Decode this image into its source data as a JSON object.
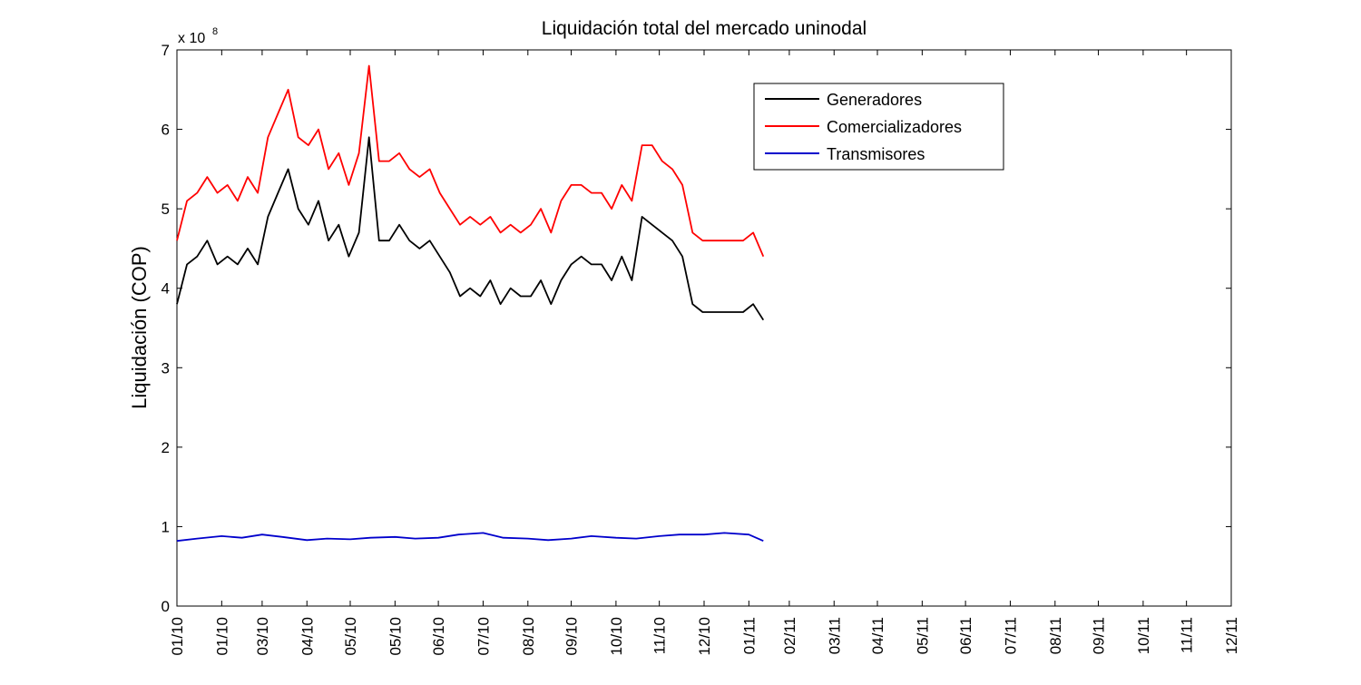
{
  "chart_data": {
    "type": "line",
    "title": "Liquidación total del mercado uninodal",
    "xlabel": "",
    "ylabel": "Liquidación (COP)",
    "y_exponent_label": "x 10",
    "y_exponent_power": "8",
    "ylim": [
      0,
      7
    ],
    "xlim": [
      "2010-01-01",
      "2011-12-01"
    ],
    "yticks": [
      "0",
      "1",
      "2",
      "3",
      "4",
      "5",
      "6",
      "7"
    ],
    "xticks": [
      {
        "date": "2010-01-01",
        "label": "01/10"
      },
      {
        "date": "2010-02-01",
        "label": "01/10"
      },
      {
        "date": "2010-03-01",
        "label": "03/10"
      },
      {
        "date": "2010-04-01",
        "label": "04/10"
      },
      {
        "date": "2010-05-01",
        "label": "05/10"
      },
      {
        "date": "2010-06-01",
        "label": "05/10"
      },
      {
        "date": "2010-07-01",
        "label": "06/10"
      },
      {
        "date": "2010-08-01",
        "label": "07/10"
      },
      {
        "date": "2010-09-01",
        "label": "08/10"
      },
      {
        "date": "2010-10-01",
        "label": "09/10"
      },
      {
        "date": "2010-11-01",
        "label": "10/10"
      },
      {
        "date": "2010-12-01",
        "label": "11/10"
      },
      {
        "date": "2011-01-01",
        "label": "12/10"
      },
      {
        "date": "2011-02-01",
        "label": "01/11"
      },
      {
        "date": "2011-03-01",
        "label": "02/11"
      },
      {
        "date": "2011-04-01",
        "label": "03/11"
      },
      {
        "date": "2011-05-01",
        "label": "04/11"
      },
      {
        "date": "2011-06-01",
        "label": "05/11"
      },
      {
        "date": "2011-07-01",
        "label": "06/11"
      },
      {
        "date": "2011-08-01",
        "label": "07/11"
      },
      {
        "date": "2011-09-01",
        "label": "08/11"
      },
      {
        "date": "2011-10-01",
        "label": "09/11"
      },
      {
        "date": "2011-11-01",
        "label": "10/11"
      },
      {
        "date": "2011-12-01",
        "label": "11/11"
      },
      {
        "date": "2012-01-01",
        "label": "12/11"
      }
    ],
    "grid": false,
    "legend_position": "top-right",
    "series": [
      {
        "name": "Generadores",
        "color": "#000000",
        "points": [
          [
            "2010-01-01",
            3.8
          ],
          [
            "2010-01-08",
            4.3
          ],
          [
            "2010-01-15",
            4.4
          ],
          [
            "2010-01-22",
            4.6
          ],
          [
            "2010-01-29",
            4.3
          ],
          [
            "2010-02-05",
            4.4
          ],
          [
            "2010-02-12",
            4.3
          ],
          [
            "2010-02-19",
            4.5
          ],
          [
            "2010-02-26",
            4.3
          ],
          [
            "2010-03-05",
            4.9
          ],
          [
            "2010-03-12",
            5.2
          ],
          [
            "2010-03-19",
            5.5
          ],
          [
            "2010-03-26",
            5.0
          ],
          [
            "2010-04-02",
            4.8
          ],
          [
            "2010-04-09",
            5.1
          ],
          [
            "2010-04-16",
            4.6
          ],
          [
            "2010-04-23",
            4.8
          ],
          [
            "2010-04-30",
            4.4
          ],
          [
            "2010-05-07",
            4.7
          ],
          [
            "2010-05-14",
            5.9
          ],
          [
            "2010-05-21",
            4.6
          ],
          [
            "2010-05-28",
            4.6
          ],
          [
            "2010-06-04",
            4.8
          ],
          [
            "2010-06-11",
            4.6
          ],
          [
            "2010-06-18",
            4.5
          ],
          [
            "2010-06-25",
            4.6
          ],
          [
            "2010-07-02",
            4.4
          ],
          [
            "2010-07-09",
            4.2
          ],
          [
            "2010-07-16",
            3.9
          ],
          [
            "2010-07-23",
            4.0
          ],
          [
            "2010-07-30",
            3.9
          ],
          [
            "2010-08-06",
            4.1
          ],
          [
            "2010-08-13",
            3.8
          ],
          [
            "2010-08-20",
            4.0
          ],
          [
            "2010-08-27",
            3.9
          ],
          [
            "2010-09-03",
            3.9
          ],
          [
            "2010-09-10",
            4.1
          ],
          [
            "2010-09-17",
            3.8
          ],
          [
            "2010-09-24",
            4.1
          ],
          [
            "2010-10-01",
            4.3
          ],
          [
            "2010-10-08",
            4.4
          ],
          [
            "2010-10-15",
            4.3
          ],
          [
            "2010-10-22",
            4.3
          ],
          [
            "2010-10-29",
            4.1
          ],
          [
            "2010-11-05",
            4.4
          ],
          [
            "2010-11-12",
            4.1
          ],
          [
            "2010-11-19",
            4.9
          ],
          [
            "2010-11-26",
            4.8
          ],
          [
            "2010-12-03",
            4.7
          ],
          [
            "2010-12-10",
            4.6
          ],
          [
            "2010-12-17",
            4.4
          ],
          [
            "2010-12-24",
            3.8
          ],
          [
            "2010-12-31",
            3.7
          ],
          [
            "2011-01-07",
            3.7
          ],
          [
            "2011-01-14",
            3.7
          ],
          [
            "2011-01-21",
            3.7
          ],
          [
            "2011-01-28",
            3.7
          ],
          [
            "2011-02-04",
            3.8
          ],
          [
            "2011-02-11",
            3.6
          ]
        ]
      },
      {
        "name": "Comercializadores",
        "color": "#ff0000",
        "points": [
          [
            "2010-01-01",
            4.6
          ],
          [
            "2010-01-08",
            5.1
          ],
          [
            "2010-01-15",
            5.2
          ],
          [
            "2010-01-22",
            5.4
          ],
          [
            "2010-01-29",
            5.2
          ],
          [
            "2010-02-05",
            5.3
          ],
          [
            "2010-02-12",
            5.1
          ],
          [
            "2010-02-19",
            5.4
          ],
          [
            "2010-02-26",
            5.2
          ],
          [
            "2010-03-05",
            5.9
          ],
          [
            "2010-03-12",
            6.2
          ],
          [
            "2010-03-19",
            6.5
          ],
          [
            "2010-03-26",
            5.9
          ],
          [
            "2010-04-02",
            5.8
          ],
          [
            "2010-04-09",
            6.0
          ],
          [
            "2010-04-16",
            5.5
          ],
          [
            "2010-04-23",
            5.7
          ],
          [
            "2010-04-30",
            5.3
          ],
          [
            "2010-05-07",
            5.7
          ],
          [
            "2010-05-14",
            6.8
          ],
          [
            "2010-05-21",
            5.6
          ],
          [
            "2010-05-28",
            5.6
          ],
          [
            "2010-06-04",
            5.7
          ],
          [
            "2010-06-11",
            5.5
          ],
          [
            "2010-06-18",
            5.4
          ],
          [
            "2010-06-25",
            5.5
          ],
          [
            "2010-07-02",
            5.2
          ],
          [
            "2010-07-09",
            5.0
          ],
          [
            "2010-07-16",
            4.8
          ],
          [
            "2010-07-23",
            4.9
          ],
          [
            "2010-07-30",
            4.8
          ],
          [
            "2010-08-06",
            4.9
          ],
          [
            "2010-08-13",
            4.7
          ],
          [
            "2010-08-20",
            4.8
          ],
          [
            "2010-08-27",
            4.7
          ],
          [
            "2010-09-03",
            4.8
          ],
          [
            "2010-09-10",
            5.0
          ],
          [
            "2010-09-17",
            4.7
          ],
          [
            "2010-09-24",
            5.1
          ],
          [
            "2010-10-01",
            5.3
          ],
          [
            "2010-10-08",
            5.3
          ],
          [
            "2010-10-15",
            5.2
          ],
          [
            "2010-10-22",
            5.2
          ],
          [
            "2010-10-29",
            5.0
          ],
          [
            "2010-11-05",
            5.3
          ],
          [
            "2010-11-12",
            5.1
          ],
          [
            "2010-11-19",
            5.8
          ],
          [
            "2010-11-26",
            5.8
          ],
          [
            "2010-12-03",
            5.6
          ],
          [
            "2010-12-10",
            5.5
          ],
          [
            "2010-12-17",
            5.3
          ],
          [
            "2010-12-24",
            4.7
          ],
          [
            "2010-12-31",
            4.6
          ],
          [
            "2011-01-07",
            4.6
          ],
          [
            "2011-01-14",
            4.6
          ],
          [
            "2011-01-21",
            4.6
          ],
          [
            "2011-01-28",
            4.6
          ],
          [
            "2011-02-04",
            4.7
          ],
          [
            "2011-02-11",
            4.4
          ]
        ]
      },
      {
        "name": "Transmisores",
        "color": "#0000cc",
        "points": [
          [
            "2010-01-01",
            0.82
          ],
          [
            "2010-01-15",
            0.85
          ],
          [
            "2010-02-01",
            0.88
          ],
          [
            "2010-02-15",
            0.86
          ],
          [
            "2010-03-01",
            0.9
          ],
          [
            "2010-03-15",
            0.87
          ],
          [
            "2010-04-01",
            0.83
          ],
          [
            "2010-04-15",
            0.85
          ],
          [
            "2010-05-01",
            0.84
          ],
          [
            "2010-05-15",
            0.86
          ],
          [
            "2010-06-01",
            0.87
          ],
          [
            "2010-06-15",
            0.85
          ],
          [
            "2010-07-01",
            0.86
          ],
          [
            "2010-07-15",
            0.9
          ],
          [
            "2010-08-01",
            0.92
          ],
          [
            "2010-08-15",
            0.86
          ],
          [
            "2010-09-01",
            0.85
          ],
          [
            "2010-09-15",
            0.83
          ],
          [
            "2010-10-01",
            0.85
          ],
          [
            "2010-10-15",
            0.88
          ],
          [
            "2010-11-01",
            0.86
          ],
          [
            "2010-11-15",
            0.85
          ],
          [
            "2010-12-01",
            0.88
          ],
          [
            "2010-12-15",
            0.9
          ],
          [
            "2011-01-01",
            0.9
          ],
          [
            "2011-01-15",
            0.92
          ],
          [
            "2011-02-01",
            0.9
          ],
          [
            "2011-02-11",
            0.82
          ]
        ]
      }
    ]
  }
}
